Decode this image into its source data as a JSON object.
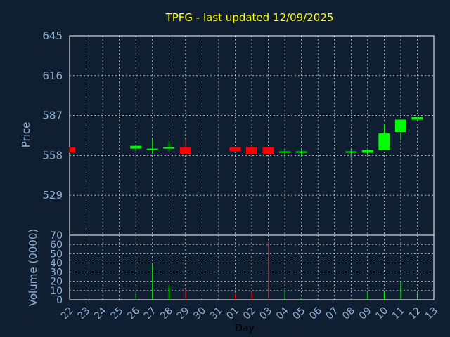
{
  "chart_data": [
    {
      "type": "candlestick",
      "title": "TPFG - last updated 12/09/2025",
      "ylabel": "Price",
      "yticks": [
        645,
        616,
        587,
        558,
        529
      ],
      "ylim": [
        500,
        645
      ],
      "x": [
        "22",
        "23",
        "24",
        "25",
        "26",
        "27",
        "28",
        "29",
        "30",
        "31",
        "01",
        "02",
        "03",
        "04",
        "05",
        "06",
        "07",
        "08",
        "09",
        "10",
        "11",
        "12",
        "13"
      ],
      "grid": true,
      "colors": {
        "up": "#00ff00",
        "down": "#ff0000",
        "neutral": "#00cc00"
      },
      "candles": [
        {
          "x": "22",
          "open": 564,
          "high": 564,
          "low": 560,
          "close": 560
        },
        {
          "x": "26",
          "open": 563,
          "high": 566,
          "low": 561,
          "close": 565
        },
        {
          "x": "27",
          "open": 562,
          "high": 570,
          "low": 559,
          "close": 563
        },
        {
          "x": "28",
          "open": 563,
          "high": 568,
          "low": 561,
          "close": 564
        },
        {
          "x": "29",
          "open": 564,
          "high": 570,
          "low": 559,
          "close": 559
        },
        {
          "x": "01",
          "open": 564,
          "high": 564,
          "low": 561,
          "close": 561
        },
        {
          "x": "02",
          "open": 564,
          "high": 565,
          "low": 559,
          "close": 559
        },
        {
          "x": "03",
          "open": 564,
          "high": 564,
          "low": 559,
          "close": 559
        },
        {
          "x": "04",
          "open": 560,
          "high": 563,
          "low": 556,
          "close": 561
        },
        {
          "x": "05",
          "open": 560,
          "high": 562,
          "low": 557,
          "close": 561
        },
        {
          "x": "08",
          "open": 560,
          "high": 563,
          "low": 556,
          "close": 561
        },
        {
          "x": "09",
          "open": 560,
          "high": 563,
          "low": 558,
          "close": 562
        },
        {
          "x": "10",
          "open": 562,
          "high": 581,
          "low": 562,
          "close": 574
        },
        {
          "x": "11",
          "open": 575,
          "high": 584,
          "low": 569,
          "close": 584
        },
        {
          "x": "12",
          "open": 584,
          "high": 586,
          "low": 584,
          "close": 586
        }
      ]
    },
    {
      "type": "bar",
      "ylabel": "Volume (0000)",
      "xlabel": "Day",
      "yticks": [
        0,
        10,
        20,
        30,
        40,
        50,
        60,
        70
      ],
      "ylim": [
        0,
        70
      ],
      "categories": [
        "22",
        "23",
        "24",
        "25",
        "26",
        "27",
        "28",
        "29",
        "30",
        "31",
        "01",
        "02",
        "03",
        "04",
        "05",
        "06",
        "07",
        "08",
        "09",
        "10",
        "11",
        "12",
        "13"
      ],
      "bars": [
        {
          "x": "22",
          "value": 0.5,
          "color": "#ff0000"
        },
        {
          "x": "26",
          "value": 7,
          "color": "#00ff00"
        },
        {
          "x": "27",
          "value": 38,
          "color": "#00ff00"
        },
        {
          "x": "28",
          "value": 15,
          "color": "#00ff00"
        },
        {
          "x": "29",
          "value": 11,
          "color": "#ff0000"
        },
        {
          "x": "01",
          "value": 6,
          "color": "#ff0000"
        },
        {
          "x": "02",
          "value": 8,
          "color": "#ff0000"
        },
        {
          "x": "03",
          "value": 64,
          "color": "#ff0000"
        },
        {
          "x": "04",
          "value": 10,
          "color": "#00ff00"
        },
        {
          "x": "05",
          "value": 1,
          "color": "#00ff00"
        },
        {
          "x": "08",
          "value": 1,
          "color": "#00ff00"
        },
        {
          "x": "09",
          "value": 8,
          "color": "#00ff00"
        },
        {
          "x": "10",
          "value": 9,
          "color": "#00ff00"
        },
        {
          "x": "11",
          "value": 20,
          "color": "#00ff00"
        },
        {
          "x": "12",
          "value": 7,
          "color": "#00ff00"
        }
      ]
    }
  ]
}
